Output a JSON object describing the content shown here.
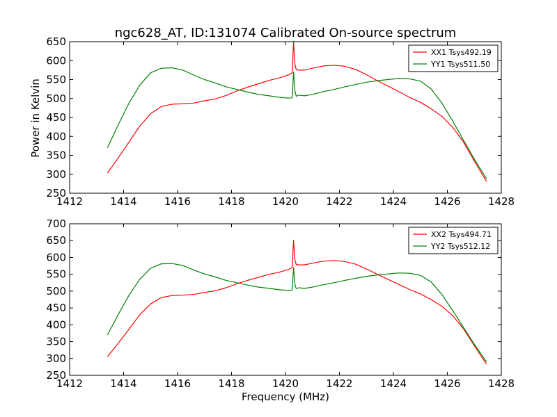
{
  "title": "ngc628_AT, ID:131074 Calibrated On-source spectrum",
  "chart_data": [
    {
      "type": "line",
      "ylabel": "Power in Kelvin",
      "xlabel": "",
      "xlim": [
        1412,
        1428
      ],
      "ylim": [
        250,
        650
      ],
      "xticks": [
        "1412",
        "1414",
        "1416",
        "1418",
        "1420",
        "1422",
        "1424",
        "1426",
        "1428"
      ],
      "yticks": [
        "250",
        "300",
        "350",
        "400",
        "450",
        "500",
        "550",
        "600",
        "650"
      ],
      "legend_position": "top-right",
      "series": [
        {
          "name": "XX1 Tsys492.19",
          "color": "#ff0000",
          "x": [
            1413.4,
            1413.8,
            1414.2,
            1414.6,
            1415.0,
            1415.4,
            1415.8,
            1416.2,
            1416.6,
            1417.0,
            1417.4,
            1417.8,
            1418.2,
            1418.6,
            1419.0,
            1419.4,
            1419.8,
            1420.1,
            1420.25,
            1420.3,
            1420.35,
            1420.4,
            1420.5,
            1420.7,
            1421.0,
            1421.4,
            1421.8,
            1422.2,
            1422.6,
            1423.0,
            1423.4,
            1423.8,
            1424.2,
            1424.6,
            1425.0,
            1425.4,
            1425.8,
            1426.2,
            1426.6,
            1427.0,
            1427.45
          ],
          "y": [
            303,
            343,
            385,
            427,
            460,
            479,
            485,
            486,
            488,
            494,
            499,
            508,
            520,
            530,
            539,
            548,
            555,
            562,
            568,
            650,
            590,
            576,
            575,
            575,
            580,
            586,
            588,
            585,
            577,
            563,
            547,
            533,
            518,
            503,
            490,
            473,
            453,
            424,
            385,
            335,
            281
          ]
        },
        {
          "name": "YY1 Tsys511.50",
          "color": "#008000",
          "x": [
            1413.4,
            1413.8,
            1414.2,
            1414.6,
            1415.0,
            1415.4,
            1415.8,
            1416.2,
            1416.6,
            1417.0,
            1417.4,
            1417.8,
            1418.2,
            1418.6,
            1419.0,
            1419.4,
            1419.8,
            1420.1,
            1420.25,
            1420.3,
            1420.35,
            1420.4,
            1420.5,
            1420.7,
            1421.0,
            1421.4,
            1421.8,
            1422.2,
            1422.6,
            1423.0,
            1423.4,
            1423.8,
            1424.2,
            1424.6,
            1425.0,
            1425.4,
            1425.8,
            1426.2,
            1426.6,
            1427.0,
            1427.45
          ],
          "y": [
            370,
            430,
            488,
            535,
            568,
            580,
            581,
            575,
            562,
            550,
            541,
            531,
            524,
            517,
            511,
            507,
            503,
            501,
            502,
            570,
            520,
            506,
            509,
            507,
            511,
            518,
            524,
            531,
            537,
            543,
            547,
            550,
            553,
            552,
            546,
            525,
            488,
            440,
            390,
            340,
            288
          ]
        }
      ]
    },
    {
      "type": "line",
      "ylabel": "",
      "xlabel": "Frequency (MHz)",
      "xlim": [
        1412,
        1428
      ],
      "ylim": [
        250,
        700
      ],
      "xticks": [
        "1412",
        "1414",
        "1416",
        "1418",
        "1420",
        "1422",
        "1424",
        "1426",
        "1428"
      ],
      "yticks": [
        "250",
        "300",
        "350",
        "400",
        "450",
        "500",
        "550",
        "600",
        "650",
        "700"
      ],
      "legend_position": "top-right",
      "series": [
        {
          "name": "XX2 Tsys494.71",
          "color": "#ff0000",
          "x": [
            1413.4,
            1413.8,
            1414.2,
            1414.6,
            1415.0,
            1415.4,
            1415.8,
            1416.2,
            1416.6,
            1417.0,
            1417.4,
            1417.8,
            1418.2,
            1418.6,
            1419.0,
            1419.4,
            1419.8,
            1420.1,
            1420.25,
            1420.3,
            1420.35,
            1420.4,
            1420.5,
            1420.7,
            1421.0,
            1421.4,
            1421.8,
            1422.2,
            1422.6,
            1423.0,
            1423.4,
            1423.8,
            1424.2,
            1424.6,
            1425.0,
            1425.4,
            1425.8,
            1426.2,
            1426.6,
            1427.0,
            1427.45
          ],
          "y": [
            305,
            345,
            387,
            430,
            462,
            481,
            487,
            488,
            490,
            496,
            501,
            510,
            522,
            532,
            541,
            550,
            557,
            564,
            570,
            651,
            592,
            579,
            578,
            578,
            583,
            589,
            591,
            588,
            580,
            566,
            550,
            535,
            520,
            505,
            492,
            475,
            455,
            427,
            388,
            338,
            283
          ]
        },
        {
          "name": "YY2 Tsys512.12",
          "color": "#008000",
          "x": [
            1413.4,
            1413.8,
            1414.2,
            1414.6,
            1415.0,
            1415.4,
            1415.8,
            1416.2,
            1416.6,
            1417.0,
            1417.4,
            1417.8,
            1418.2,
            1418.6,
            1419.0,
            1419.4,
            1419.8,
            1420.1,
            1420.25,
            1420.3,
            1420.35,
            1420.4,
            1420.5,
            1420.7,
            1421.0,
            1421.4,
            1421.8,
            1422.2,
            1422.6,
            1423.0,
            1423.4,
            1423.8,
            1424.2,
            1424.6,
            1425.0,
            1425.4,
            1425.8,
            1426.2,
            1426.6,
            1427.0,
            1427.45
          ],
          "y": [
            370,
            430,
            488,
            535,
            568,
            581,
            582,
            576,
            563,
            551,
            542,
            532,
            525,
            518,
            512,
            508,
            504,
            502,
            503,
            570,
            520,
            507,
            510,
            508,
            512,
            519,
            525,
            532,
            538,
            544,
            548,
            551,
            554,
            553,
            547,
            527,
            490,
            442,
            392,
            342,
            290
          ]
        }
      ]
    }
  ]
}
